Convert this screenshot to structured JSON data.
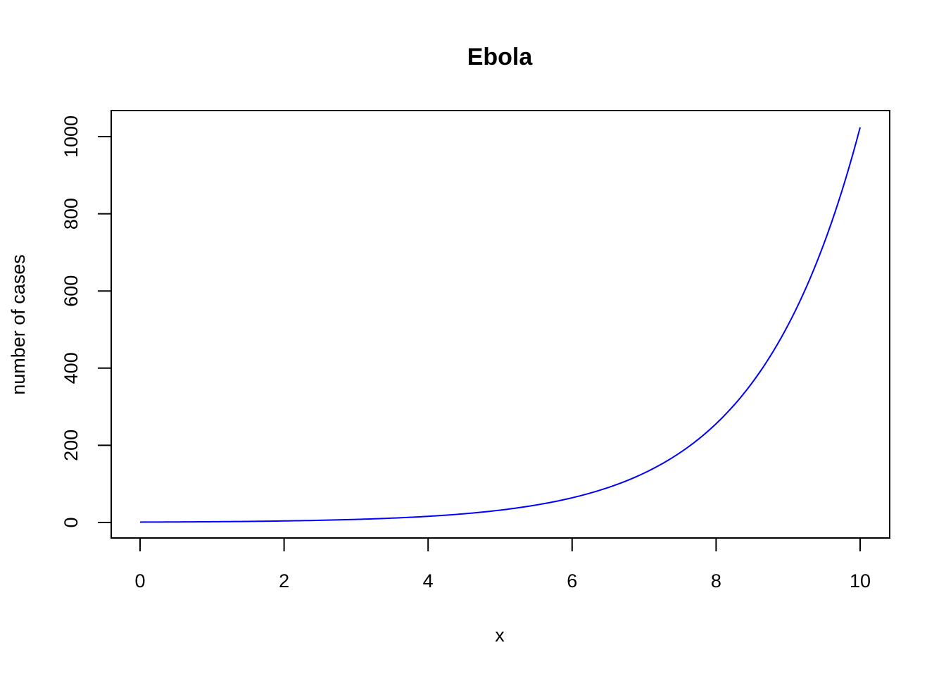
{
  "chart_data": {
    "type": "line",
    "title": "Ebola",
    "xlabel": "x",
    "ylabel": "number of cases",
    "xlim": [
      0,
      10
    ],
    "ylim": [
      0,
      1024
    ],
    "x_ticks": [
      "0",
      "2",
      "4",
      "6",
      "8",
      "10"
    ],
    "y_ticks": [
      "0",
      "200",
      "400",
      "600",
      "800",
      "1000"
    ],
    "grid": false,
    "series": [
      {
        "color": "#0000ff",
        "x": [
          0,
          0.5,
          1,
          1.5,
          2,
          2.5,
          3,
          3.5,
          4,
          4.5,
          5,
          5.5,
          6,
          6.5,
          7,
          7.5,
          8,
          8.5,
          9,
          9.5,
          10
        ],
        "y": [
          1,
          1.4,
          2,
          2.8,
          4,
          5.7,
          8,
          11.3,
          16,
          22.6,
          32,
          45.3,
          64,
          90.5,
          128,
          181,
          256,
          362,
          512,
          724,
          1024
        ]
      }
    ]
  }
}
